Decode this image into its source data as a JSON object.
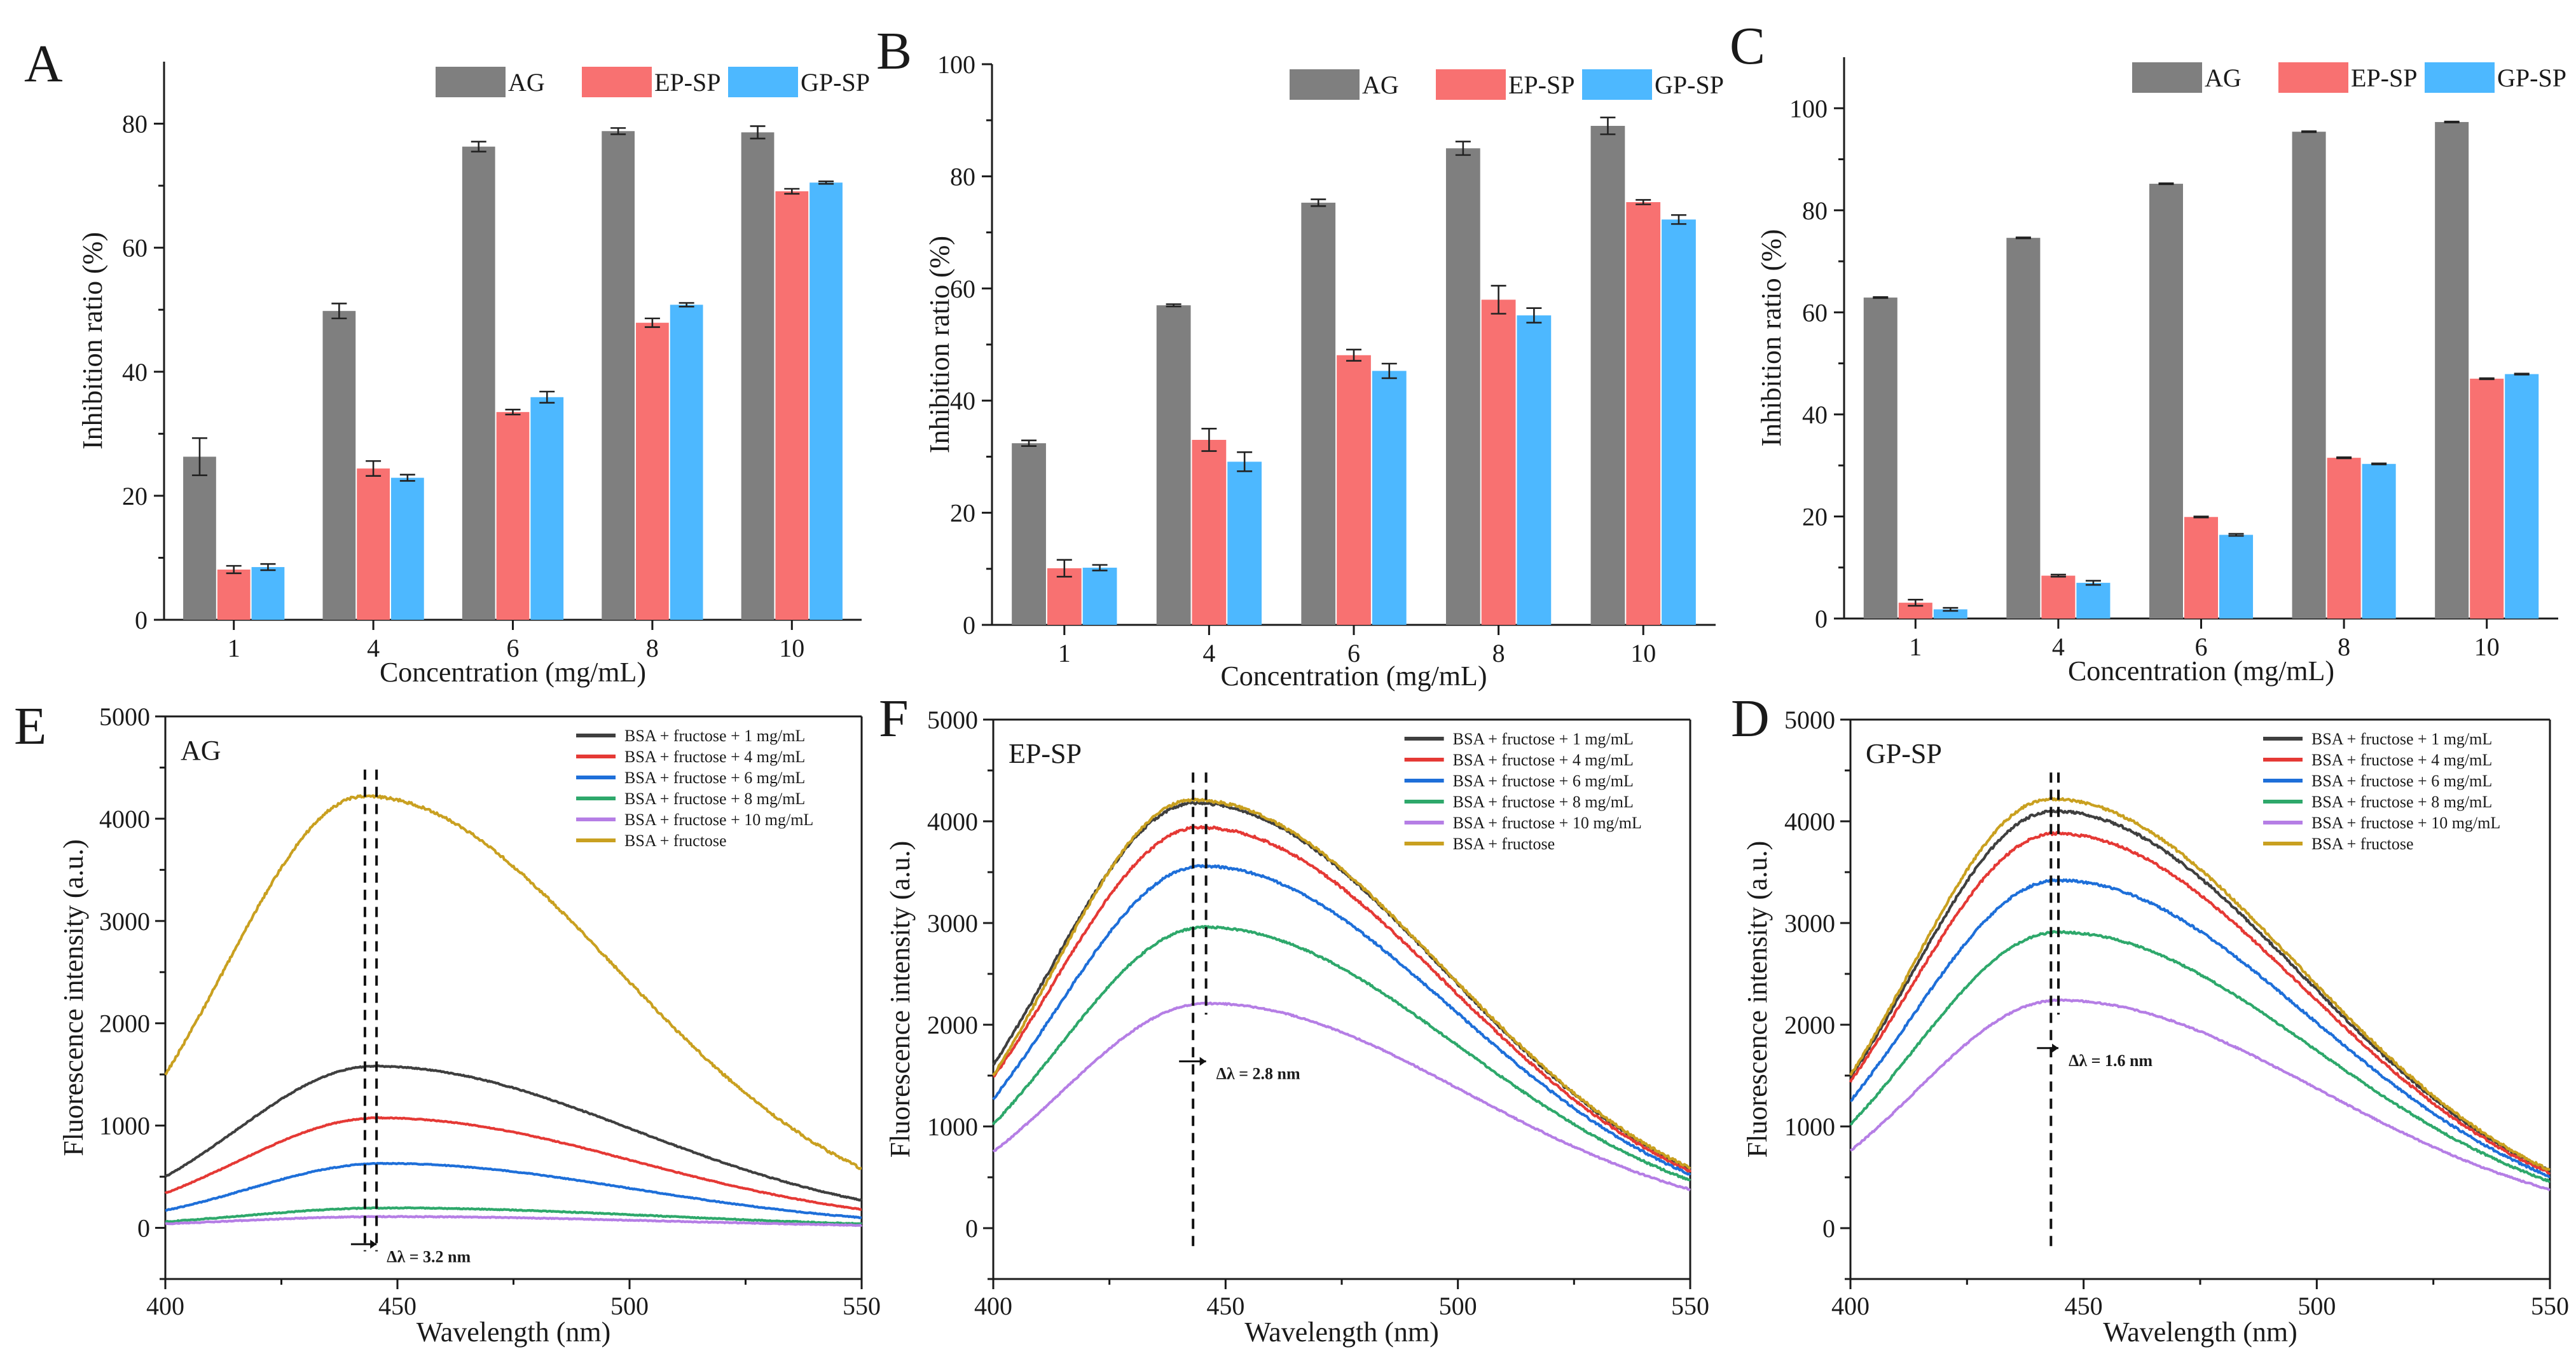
{
  "chart_data": [
    {
      "id": "A",
      "type": "bar",
      "panel_label": "A",
      "categories": [
        "1",
        "4",
        "6",
        "8",
        "10"
      ],
      "xlabel": "Concentration (mg/mL)",
      "ylabel": "Inhibition ratio (%)",
      "ylim": [
        0,
        90
      ],
      "yticks": [
        0,
        20,
        40,
        60,
        80
      ],
      "legend_position": "top-right",
      "series": [
        {
          "name": "AG",
          "color": "#7f7f7f",
          "values": [
            26.3,
            49.8,
            76.3,
            78.8,
            78.6
          ],
          "errors": [
            3.0,
            1.2,
            0.8,
            0.5,
            1.0
          ]
        },
        {
          "name": "EP-SP",
          "color": "#f87171",
          "values": [
            8.1,
            24.4,
            33.5,
            47.9,
            69.1
          ],
          "errors": [
            0.6,
            1.2,
            0.4,
            0.7,
            0.4
          ]
        },
        {
          "name": "GP-SP",
          "color": "#4db8ff",
          "values": [
            8.5,
            22.9,
            35.9,
            50.8,
            70.5
          ],
          "errors": [
            0.5,
            0.5,
            0.9,
            0.3,
            0.2
          ]
        }
      ]
    },
    {
      "id": "B",
      "type": "bar",
      "panel_label": "B",
      "categories": [
        "1",
        "4",
        "6",
        "8",
        "10"
      ],
      "xlabel": "Concentration (mg/mL)",
      "ylabel": "Inhibition ratio (%)",
      "ylim": [
        0,
        100
      ],
      "yticks": [
        0,
        20,
        40,
        60,
        80,
        100
      ],
      "legend_position": "top-right",
      "series": [
        {
          "name": "AG",
          "color": "#7f7f7f",
          "values": [
            32.4,
            57.0,
            75.3,
            85.0,
            89.0
          ],
          "errors": [
            0.5,
            0.2,
            0.6,
            1.2,
            1.5
          ]
        },
        {
          "name": "EP-SP",
          "color": "#f87171",
          "values": [
            10.1,
            33.0,
            48.1,
            58.0,
            75.4
          ],
          "errors": [
            1.5,
            2.0,
            1.0,
            2.5,
            0.4
          ]
        },
        {
          "name": "GP-SP",
          "color": "#4db8ff",
          "values": [
            10.2,
            29.1,
            45.3,
            55.2,
            72.3
          ],
          "errors": [
            0.5,
            1.7,
            1.3,
            1.3,
            0.8
          ]
        }
      ]
    },
    {
      "id": "C",
      "type": "bar",
      "panel_label": "C",
      "categories": [
        "1",
        "4",
        "6",
        "8",
        "10"
      ],
      "xlabel": "Concentration (mg/mL)",
      "ylabel": "Inhibition ratio (%)",
      "ylim": [
        0,
        110
      ],
      "yticks": [
        0,
        20,
        40,
        60,
        80,
        100
      ],
      "legend_position": "top-right",
      "series": [
        {
          "name": "AG",
          "color": "#7f7f7f",
          "values": [
            62.9,
            74.6,
            85.2,
            95.4,
            97.3
          ],
          "errors": [
            0.1,
            0.1,
            0.1,
            0.1,
            0.1
          ]
        },
        {
          "name": "EP-SP",
          "color": "#f87171",
          "values": [
            3.1,
            8.4,
            19.9,
            31.5,
            47.0
          ],
          "errors": [
            0.6,
            0.2,
            0.1,
            0.1,
            0.1
          ]
        },
        {
          "name": "GP-SP",
          "color": "#4db8ff",
          "values": [
            1.8,
            7.0,
            16.4,
            30.3,
            47.9
          ],
          "errors": [
            0.3,
            0.4,
            0.2,
            0.1,
            0.1
          ]
        }
      ]
    },
    {
      "id": "E",
      "type": "line",
      "panel_label": "E",
      "panel_title": "AG",
      "xlabel": "Wavelength (nm)",
      "ylabel": "Fluorescence intensity (a.u.)",
      "xlim": [
        400,
        550
      ],
      "ylim": [
        -500,
        5000
      ],
      "xticks": [
        400,
        450,
        500,
        550
      ],
      "yticks": [
        0,
        1000,
        2000,
        3000,
        4000,
        5000
      ],
      "legend_position": "top-right",
      "series": [
        {
          "name": "BSA + fructose + 1 mg/mL",
          "color": "#3f3f3f",
          "peak_x": 445,
          "peak_y": 1580,
          "start_y": 500,
          "end_y": 270
        },
        {
          "name": "BSA + fructose + 4 mg/mL",
          "color": "#e53935",
          "peak_x": 446,
          "peak_y": 1075,
          "start_y": 340,
          "end_y": 180
        },
        {
          "name": "BSA + fructose + 6 mg/mL",
          "color": "#1e6fd9",
          "peak_x": 447,
          "peak_y": 630,
          "start_y": 170,
          "end_y": 100
        },
        {
          "name": "BSA + fructose + 8 mg/mL",
          "color": "#2ea86b",
          "peak_x": 448,
          "peak_y": 195,
          "start_y": 60,
          "end_y": 40
        },
        {
          "name": "BSA + fructose + 10 mg/mL",
          "color": "#b57ee5",
          "peak_x": 448,
          "peak_y": 110,
          "start_y": 40,
          "end_y": 25
        },
        {
          "name": "BSA + fructose",
          "color": "#c9a020",
          "peak_x": 443,
          "peak_y": 4220,
          "start_y": 1500,
          "end_y": 580
        }
      ],
      "peak_markers": [
        443,
        445.5
      ],
      "annotation": "Δλ = 3.2 nm"
    },
    {
      "id": "F",
      "type": "line",
      "panel_label": "F",
      "panel_title": "EP-SP",
      "xlabel": "Wavelength (nm)",
      "ylabel": "Fluorescence intensity (a.u.)",
      "xlim": [
        400,
        550
      ],
      "ylim": [
        -500,
        5000
      ],
      "xticks": [
        400,
        450,
        500,
        550
      ],
      "yticks": [
        0,
        1000,
        2000,
        3000,
        4000,
        5000
      ],
      "legend_position": "top-right",
      "series": [
        {
          "name": "BSA + fructose + 1 mg/mL",
          "color": "#3f3f3f",
          "peak_x": 443.5,
          "peak_y": 4180,
          "start_y": 1600,
          "end_y": 580
        },
        {
          "name": "BSA + fructose + 4 mg/mL",
          "color": "#e53935",
          "peak_x": 444.5,
          "peak_y": 3940,
          "start_y": 1480,
          "end_y": 560
        },
        {
          "name": "BSA + fructose + 6 mg/mL",
          "color": "#1e6fd9",
          "peak_x": 445,
          "peak_y": 3560,
          "start_y": 1270,
          "end_y": 530
        },
        {
          "name": "BSA + fructose + 8 mg/mL",
          "color": "#2ea86b",
          "peak_x": 445.5,
          "peak_y": 2960,
          "start_y": 1020,
          "end_y": 470
        },
        {
          "name": "BSA + fructose + 10 mg/mL",
          "color": "#b57ee5",
          "peak_x": 446,
          "peak_y": 2210,
          "start_y": 750,
          "end_y": 380
        },
        {
          "name": "BSA + fructose",
          "color": "#c9a020",
          "peak_x": 443,
          "peak_y": 4210,
          "start_y": 1500,
          "end_y": 590
        }
      ],
      "peak_markers": [
        443,
        445.8
      ],
      "annotation": "Δλ = 2.8 nm"
    },
    {
      "id": "D",
      "type": "line",
      "panel_label": "D",
      "panel_title": "GP-SP",
      "xlabel": "Wavelength (nm)",
      "ylabel": "Fluorescence intensity (a.u.)",
      "xlim": [
        400,
        550
      ],
      "ylim": [
        -500,
        5000
      ],
      "xticks": [
        400,
        450,
        500,
        550
      ],
      "yticks": [
        0,
        1000,
        2000,
        3000,
        4000,
        5000
      ],
      "legend_position": "top-right",
      "series": [
        {
          "name": "BSA + fructose + 1 mg/mL",
          "color": "#3f3f3f",
          "peak_x": 443.5,
          "peak_y": 4100,
          "start_y": 1480,
          "end_y": 560
        },
        {
          "name": "BSA + fructose + 4 mg/mL",
          "color": "#e53935",
          "peak_x": 444,
          "peak_y": 3880,
          "start_y": 1440,
          "end_y": 540
        },
        {
          "name": "BSA + fructose + 6 mg/mL",
          "color": "#1e6fd9",
          "peak_x": 444.5,
          "peak_y": 3420,
          "start_y": 1250,
          "end_y": 510
        },
        {
          "name": "BSA + fructose + 8 mg/mL",
          "color": "#2ea86b",
          "peak_x": 444.5,
          "peak_y": 2910,
          "start_y": 1020,
          "end_y": 460
        },
        {
          "name": "BSA + fructose + 10 mg/mL",
          "color": "#b57ee5",
          "peak_x": 444.6,
          "peak_y": 2240,
          "start_y": 760,
          "end_y": 380
        },
        {
          "name": "BSA + fructose",
          "color": "#c9a020",
          "peak_x": 443,
          "peak_y": 4220,
          "start_y": 1500,
          "end_y": 570
        }
      ],
      "peak_markers": [
        443,
        444.6
      ],
      "annotation": "Δλ = 1.6 nm"
    }
  ]
}
